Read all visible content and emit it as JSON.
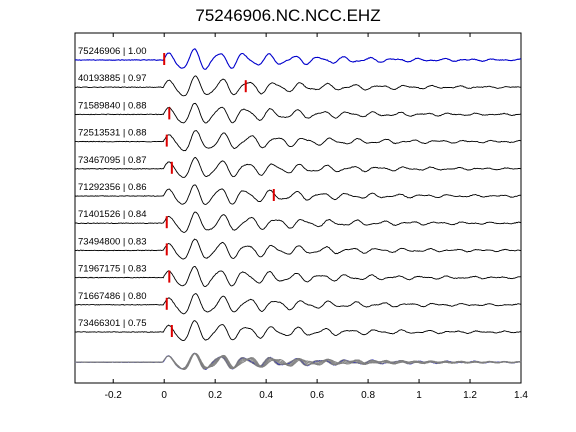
{
  "chart_data": {
    "type": "line",
    "title": "75246906.NC.NCC.EHZ",
    "xlabel": "",
    "ylabel": "",
    "xlim": [
      -0.35,
      1.4
    ],
    "x_ticks": [
      "-0.2",
      "0",
      "0.2",
      "0.4",
      "0.6",
      "0.8",
      "1",
      "1.2",
      "1.4"
    ],
    "x_tick_values": [
      -0.2,
      0,
      0.2,
      0.4,
      0.6,
      0.8,
      1.0,
      1.2,
      1.4
    ],
    "grid": false,
    "reference_color": "#0000cc",
    "trace_color": "#000000",
    "pick_color": "#dd0000",
    "stack_color": "#808080",
    "traces": [
      {
        "event_id": "75246906",
        "cc": "1.00",
        "label": "75246906 | 1.00",
        "pick_time": 0.0,
        "reference": true
      },
      {
        "event_id": "40193885",
        "cc": "0.97",
        "label": "40193885 | 0.97",
        "pick_time": 0.32,
        "reference": false
      },
      {
        "event_id": "71589840",
        "cc": "0.88",
        "label": "71589840 | 0.88",
        "pick_time": 0.02,
        "reference": false
      },
      {
        "event_id": "72513531",
        "cc": "0.88",
        "label": "72513531 | 0.88",
        "pick_time": 0.01,
        "reference": false
      },
      {
        "event_id": "73467095",
        "cc": "0.87",
        "label": "73467095 | 0.87",
        "pick_time": 0.03,
        "reference": false
      },
      {
        "event_id": "71292356",
        "cc": "0.86",
        "label": "71292356 | 0.86",
        "pick_time": 0.43,
        "reference": false
      },
      {
        "event_id": "71401526",
        "cc": "0.84",
        "label": "71401526 | 0.84",
        "pick_time": 0.01,
        "reference": false
      },
      {
        "event_id": "73494800",
        "cc": "0.83",
        "label": "73494800 | 0.83",
        "pick_time": 0.01,
        "reference": false
      },
      {
        "event_id": "71967175",
        "cc": "0.83",
        "label": "71967175 | 0.83",
        "pick_time": 0.02,
        "reference": false
      },
      {
        "event_id": "71667486",
        "cc": "0.80",
        "label": "71667486 | 0.80",
        "pick_time": 0.01,
        "reference": false
      },
      {
        "event_id": "73466301",
        "cc": "0.75",
        "label": "73466301 | 0.75",
        "pick_time": 0.03,
        "reference": false
      }
    ],
    "stack": {
      "overlay": true
    }
  }
}
